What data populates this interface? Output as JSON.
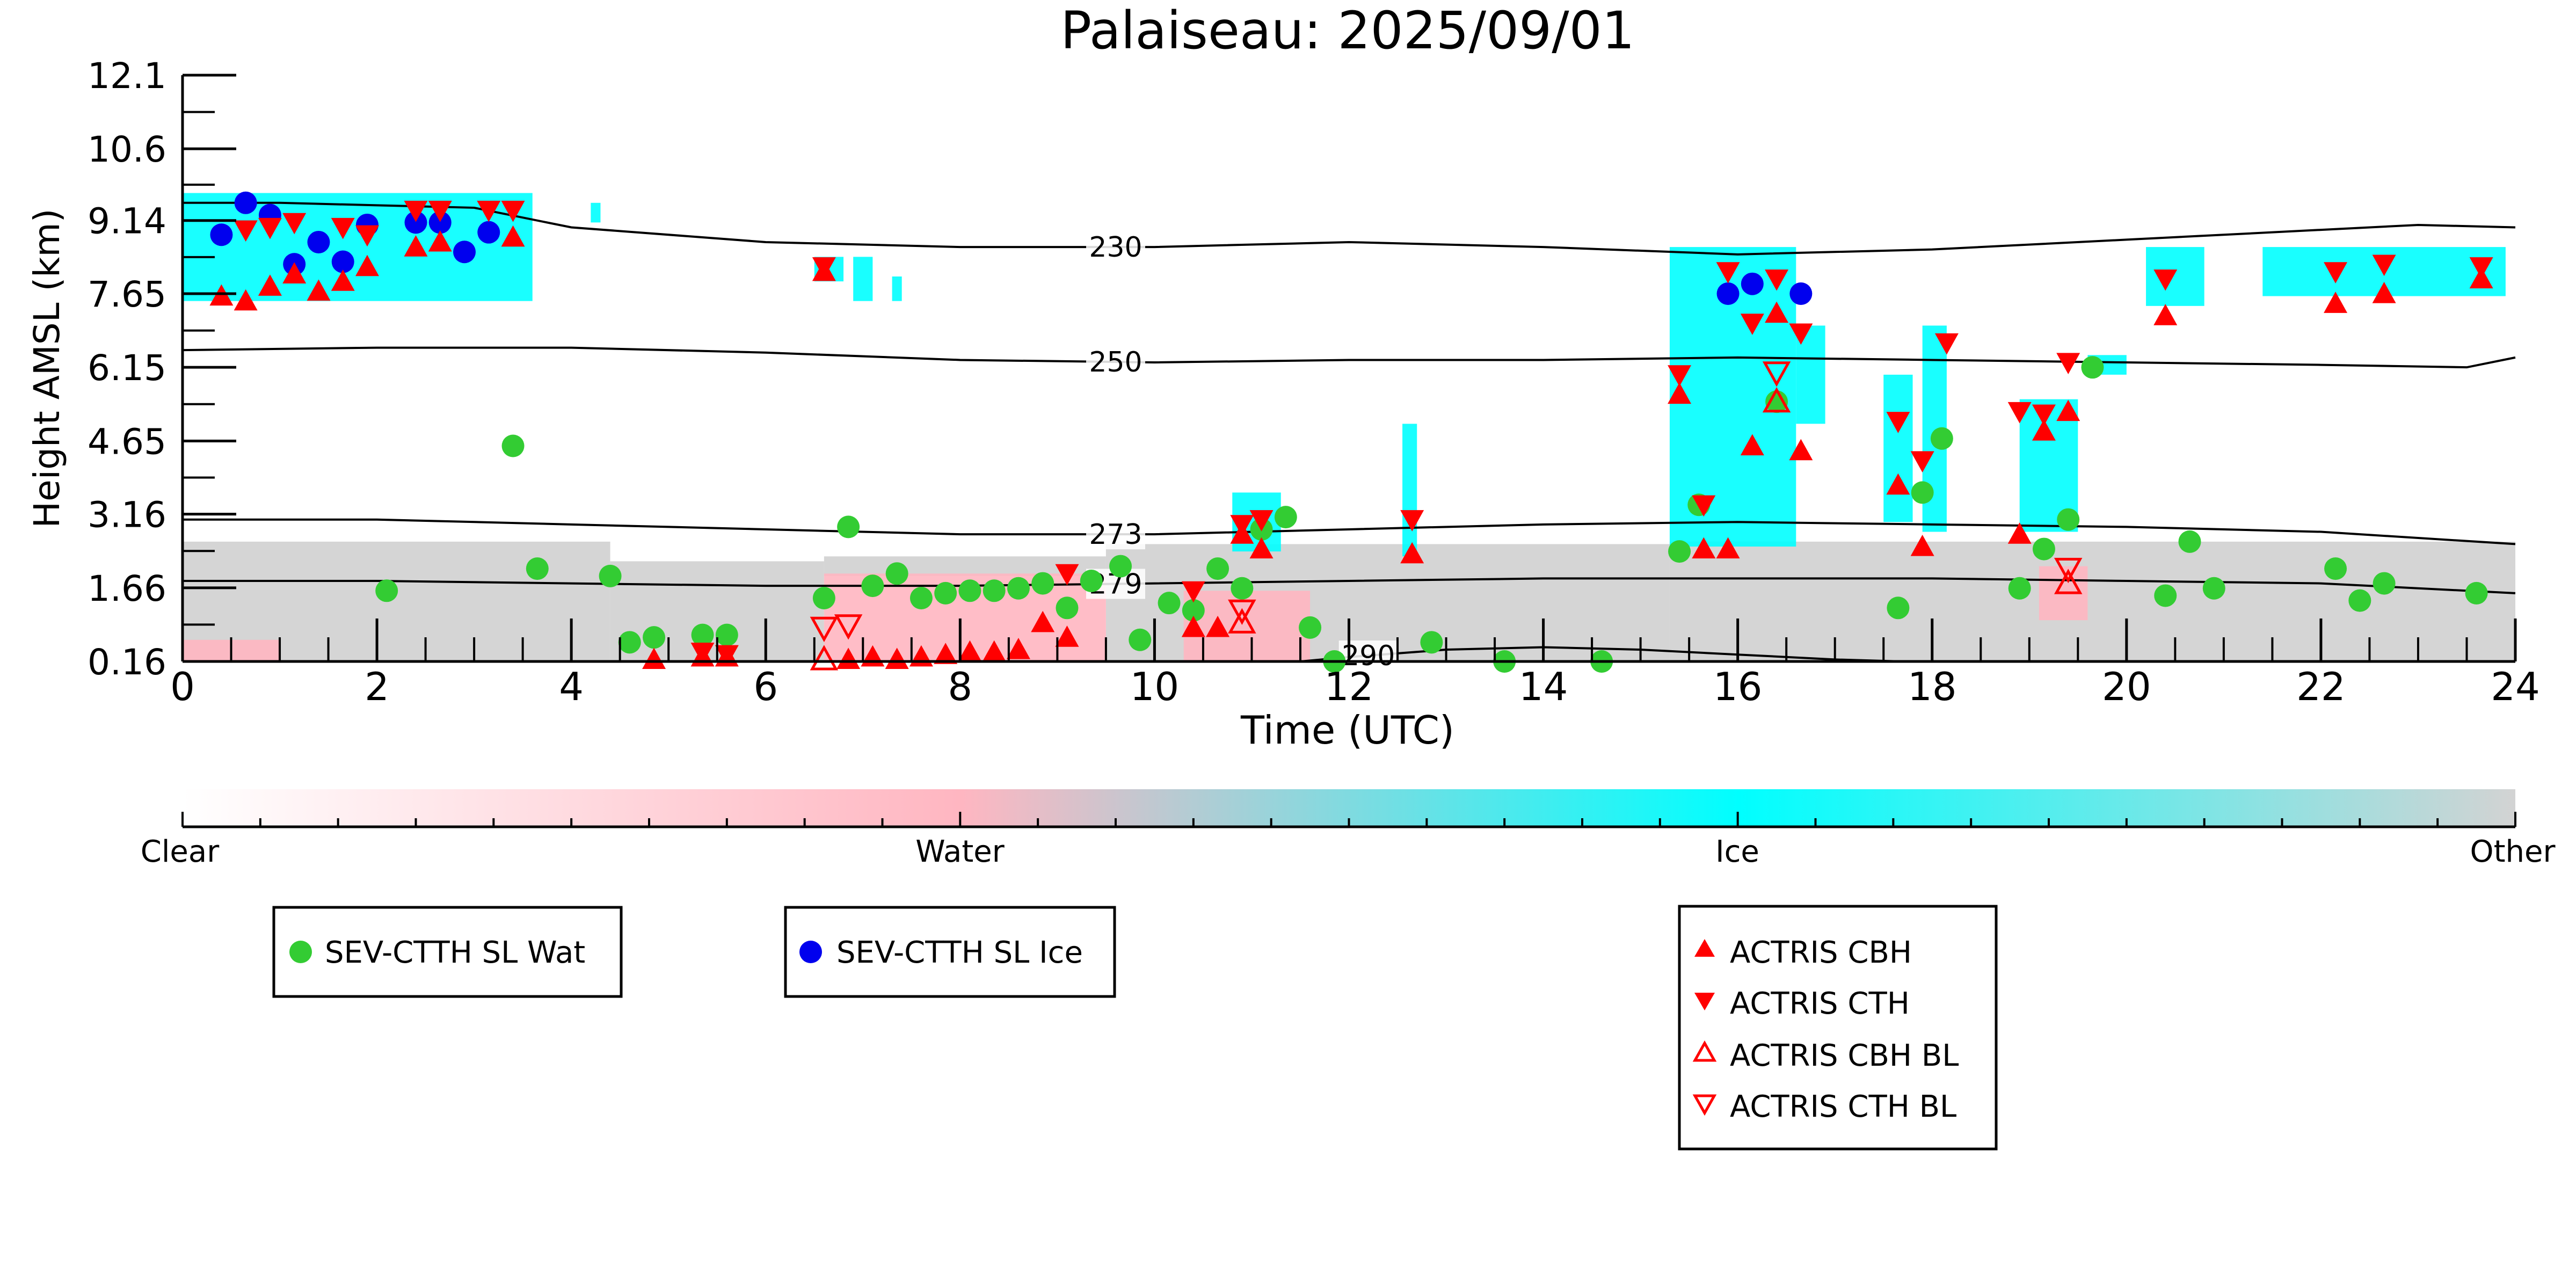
{
  "chart_data": {
    "type": "scatter",
    "title": "Palaiseau: 2025/09/01",
    "xlabel": "Time (UTC)",
    "ylabel": "Height AMSL (km)",
    "xlim": [
      0,
      24
    ],
    "ylim": [
      0.16,
      12.1
    ],
    "x_ticks": [
      "0",
      "2",
      "4",
      "6",
      "8",
      "10",
      "12",
      "14",
      "16",
      "18",
      "20",
      "22",
      "24"
    ],
    "y_ticks": [
      "0.16",
      "1.66",
      "3.16",
      "4.65",
      "6.15",
      "7.65",
      "9.14",
      "10.6",
      "12.1"
    ],
    "colorbar": {
      "labels": [
        "Clear",
        "Water",
        "Ice",
        "Other"
      ],
      "colors": [
        "#ffffff",
        "#ffb6c1",
        "#00ffff",
        "#d3d3d3"
      ]
    },
    "colors": {
      "water": "#ffb6c1",
      "ice": "#00ffff",
      "other": "#d3d3d3",
      "sev_water": "#33cc33",
      "sev_ice": "#0000ee",
      "actris": "#ff0000"
    },
    "isotherms": [
      {
        "label": "230",
        "x": [
          0,
          1,
          2,
          3,
          4,
          6,
          8,
          10,
          12,
          14,
          16,
          18,
          20,
          22,
          23,
          24
        ],
        "y": [
          9.5,
          9.5,
          9.45,
          9.4,
          9.0,
          8.7,
          8.6,
          8.6,
          8.7,
          8.6,
          8.45,
          8.55,
          8.75,
          8.95,
          9.05,
          9.0
        ]
      },
      {
        "label": "250",
        "x": [
          0,
          2,
          4,
          6,
          8,
          10,
          12,
          14,
          16,
          18,
          20,
          22,
          23.5,
          24
        ],
        "y": [
          6.5,
          6.55,
          6.55,
          6.45,
          6.3,
          6.25,
          6.3,
          6.3,
          6.35,
          6.3,
          6.25,
          6.2,
          6.15,
          6.35
        ]
      },
      {
        "label": "273",
        "x": [
          0,
          2,
          4,
          6,
          8,
          10,
          12,
          14,
          16,
          18,
          20,
          22,
          24
        ],
        "y": [
          3.05,
          3.05,
          2.95,
          2.85,
          2.75,
          2.75,
          2.85,
          2.95,
          3.0,
          2.95,
          2.9,
          2.8,
          2.55
        ]
      },
      {
        "label": "279",
        "x": [
          0,
          2,
          4,
          6,
          8,
          10,
          12,
          14,
          16,
          18,
          20,
          22,
          24
        ],
        "y": [
          1.8,
          1.8,
          1.75,
          1.7,
          1.7,
          1.75,
          1.8,
          1.85,
          1.85,
          1.85,
          1.8,
          1.75,
          1.55
        ]
      },
      {
        "label": "290",
        "x": [
          11.5,
          12,
          13,
          14,
          15,
          16,
          17,
          17.7
        ],
        "y": [
          0.16,
          0.25,
          0.4,
          0.45,
          0.4,
          0.3,
          0.2,
          0.16
        ]
      }
    ],
    "series": [
      {
        "name": "SEV-CTTH SL Wat",
        "marker": "circle",
        "color": "#33cc33",
        "x": [
          2.1,
          3.4,
          3.65,
          4.4,
          4.6,
          4.85,
          5.35,
          5.6,
          6.6,
          6.85,
          7.1,
          7.35,
          7.6,
          7.85,
          8.1,
          8.35,
          8.6,
          8.85,
          9.1,
          9.35,
          9.65,
          9.85,
          10.15,
          10.4,
          10.65,
          10.9,
          11.1,
          11.35,
          11.6,
          11.85,
          12.85,
          13.6,
          14.6,
          15.4,
          15.6,
          16.4,
          17.65,
          17.9,
          18.1,
          18.9,
          19.15,
          19.4,
          19.65,
          20.4,
          20.65,
          20.9,
          22.15,
          22.4,
          22.65,
          23.6
        ],
        "y": [
          1.6,
          4.55,
          2.05,
          1.9,
          0.55,
          0.65,
          0.7,
          0.7,
          1.45,
          2.9,
          1.7,
          1.95,
          1.45,
          1.55,
          1.6,
          1.6,
          1.65,
          1.75,
          1.25,
          1.8,
          2.1,
          0.6,
          1.35,
          1.2,
          2.05,
          1.65,
          2.85,
          3.1,
          0.85,
          0.16,
          0.55,
          0.16,
          0.16,
          2.4,
          3.35,
          5.45,
          1.25,
          3.6,
          4.7,
          1.65,
          2.45,
          3.05,
          6.15,
          1.5,
          2.6,
          1.65,
          2.05,
          1.4,
          1.75,
          1.55
        ]
      },
      {
        "name": "SEV-CTTH SL Ice",
        "marker": "circle",
        "color": "#0000ee",
        "x": [
          0.4,
          0.65,
          0.9,
          1.15,
          1.4,
          1.65,
          1.9,
          2.4,
          2.65,
          2.9,
          3.15,
          15.9,
          16.15,
          16.65
        ],
        "y": [
          8.85,
          9.5,
          9.25,
          8.25,
          8.7,
          8.3,
          9.05,
          9.1,
          9.1,
          8.5,
          8.9,
          7.65,
          7.85,
          7.65
        ]
      },
      {
        "name": "ACTRIS CBH",
        "marker": "triangle-up",
        "color": "#ff0000",
        "x": [
          0.4,
          0.65,
          0.9,
          1.15,
          1.4,
          1.65,
          1.9,
          2.4,
          2.65,
          3.4,
          4.85,
          5.35,
          5.6,
          6.6,
          6.85,
          7.1,
          7.35,
          7.6,
          7.85,
          8.1,
          8.35,
          8.6,
          8.85,
          9.1,
          10.4,
          10.65,
          10.9,
          11.1,
          12.65,
          15.4,
          15.65,
          15.9,
          16.15,
          16.4,
          16.65,
          17.65,
          17.9,
          18.9,
          19.15,
          19.4,
          20.4,
          22.15,
          22.65,
          23.65
        ],
        "y": [
          7.6,
          7.5,
          7.8,
          8.05,
          7.7,
          7.9,
          8.2,
          8.6,
          8.7,
          8.8,
          0.2,
          0.25,
          0.25,
          8.1,
          0.2,
          0.25,
          0.2,
          0.25,
          0.3,
          0.35,
          0.35,
          0.4,
          0.95,
          0.65,
          0.85,
          0.85,
          2.75,
          2.45,
          2.35,
          5.6,
          2.45,
          2.45,
          4.55,
          7.25,
          4.45,
          3.75,
          2.5,
          2.75,
          4.85,
          5.25,
          7.2,
          7.45,
          7.65,
          7.95
        ]
      },
      {
        "name": "ACTRIS CTH",
        "marker": "triangle-down",
        "color": "#ff0000",
        "x": [
          0.65,
          0.9,
          1.15,
          1.65,
          1.9,
          2.4,
          2.65,
          3.15,
          3.4,
          5.35,
          5.6,
          6.6,
          9.1,
          10.4,
          10.9,
          11.1,
          12.65,
          15.4,
          15.65,
          15.9,
          16.15,
          16.4,
          16.65,
          17.65,
          17.9,
          18.15,
          18.9,
          19.15,
          19.4,
          20.4,
          22.15,
          22.65,
          23.65
        ],
        "y": [
          8.95,
          9.0,
          9.1,
          9.0,
          8.85,
          9.35,
          9.35,
          9.35,
          9.35,
          0.35,
          0.3,
          8.2,
          1.95,
          1.6,
          2.95,
          3.05,
          3.05,
          6.0,
          3.35,
          8.1,
          7.05,
          7.95,
          6.85,
          5.05,
          4.25,
          6.65,
          5.25,
          5.2,
          6.25,
          7.95,
          8.1,
          8.25,
          8.2
        ]
      },
      {
        "name": "ACTRIS CBH BL",
        "marker": "triangle-up-open",
        "color": "#ff0000",
        "x": [
          6.6,
          10.9,
          16.4,
          19.4
        ],
        "y": [
          0.2,
          0.95,
          5.45,
          1.75
        ]
      },
      {
        "name": "ACTRIS CTH BL",
        "marker": "triangle-down-open",
        "color": "#ff0000",
        "x": [
          6.6,
          6.85,
          10.9,
          16.4,
          19.4
        ],
        "y": [
          0.85,
          0.9,
          1.2,
          6.05,
          2.05
        ]
      }
    ],
    "cloud_mask": {
      "ice": [
        {
          "x": [
            0.0,
            3.6
          ],
          "y": [
            7.5,
            9.7
          ]
        },
        {
          "x": [
            4.2,
            4.3
          ],
          "y": [
            9.1,
            9.5
          ]
        },
        {
          "x": [
            6.5,
            6.8
          ],
          "y": [
            7.9,
            8.4
          ]
        },
        {
          "x": [
            6.9,
            7.1
          ],
          "y": [
            7.5,
            8.4
          ]
        },
        {
          "x": [
            7.3,
            7.4
          ],
          "y": [
            7.5,
            8.0
          ]
        },
        {
          "x": [
            10.8,
            11.3
          ],
          "y": [
            2.4,
            3.6
          ]
        },
        {
          "x": [
            12.55,
            12.7
          ],
          "y": [
            2.3,
            5.0
          ]
        },
        {
          "x": [
            15.3,
            16.6
          ],
          "y": [
            2.5,
            8.6
          ]
        },
        {
          "x": [
            16.6,
            16.9
          ],
          "y": [
            5.0,
            7.0
          ]
        },
        {
          "x": [
            17.5,
            17.8
          ],
          "y": [
            3.0,
            6.0
          ]
        },
        {
          "x": [
            17.9,
            18.15
          ],
          "y": [
            2.8,
            7.0
          ]
        },
        {
          "x": [
            18.9,
            19.5
          ],
          "y": [
            2.8,
            5.5
          ]
        },
        {
          "x": [
            19.6,
            20.0
          ],
          "y": [
            6.0,
            6.4
          ]
        },
        {
          "x": [
            20.2,
            20.8
          ],
          "y": [
            7.4,
            8.6
          ]
        },
        {
          "x": [
            21.4,
            23.9
          ],
          "y": [
            7.6,
            8.6
          ]
        }
      ],
      "water": [
        {
          "x": [
            6.6,
            9.5
          ],
          "y": [
            0.16,
            1.95
          ]
        },
        {
          "x": [
            10.3,
            11.6
          ],
          "y": [
            0.16,
            1.6
          ]
        },
        {
          "x": [
            19.1,
            19.6
          ],
          "y": [
            1.0,
            2.1
          ]
        },
        {
          "x": [
            0.0,
            1.0
          ],
          "y": [
            0.16,
            0.6
          ]
        }
      ],
      "other": [
        {
          "x": [
            0.0,
            4.4
          ],
          "y": [
            0.16,
            2.6
          ]
        },
        {
          "x": [
            4.4,
            6.6
          ],
          "y": [
            0.16,
            2.2
          ]
        },
        {
          "x": [
            6.6,
            9.5
          ],
          "y": [
            1.9,
            2.3
          ]
        },
        {
          "x": [
            9.5,
            15.3
          ],
          "y": [
            0.16,
            2.55
          ]
        },
        {
          "x": [
            15.3,
            24.0
          ],
          "y": [
            0.16,
            2.6
          ]
        }
      ]
    }
  }
}
